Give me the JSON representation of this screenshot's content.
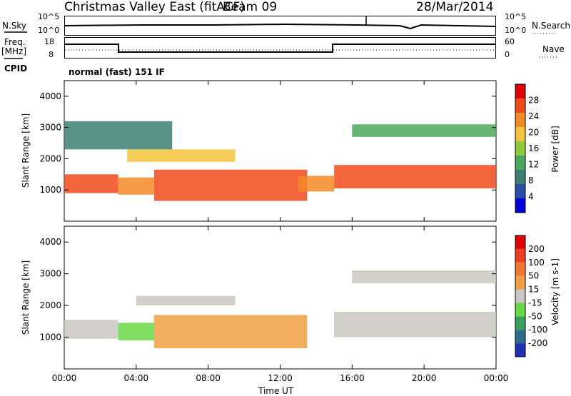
{
  "header": {
    "station": "Christmas Valley East (fitACF)",
    "beam": "Beam 09",
    "date": "28/Mar/2014"
  },
  "top_panels": {
    "nsky_label": "N.Sky",
    "nsky_ticks": [
      "10^5",
      "10^0"
    ],
    "nsearch_label": "N.Search",
    "nsearch_ticks": [
      "10^5",
      "10^0"
    ],
    "freq_label_1": "Freq.",
    "freq_label_2": "[MHz]",
    "freq_ticks": [
      "18",
      "8"
    ],
    "nave_label": "Nave",
    "nave_ticks": [
      "60",
      "0"
    ],
    "cpid_label": "CPID",
    "cpid_value": "normal (fast) 151 IF"
  },
  "colors": {
    "power_scale": [
      "#0000e0",
      "#2a4ea8",
      "#3c7f72",
      "#4ca85a",
      "#8fcc3c",
      "#f3c43c",
      "#f38a28",
      "#f04a1c",
      "#e00000"
    ],
    "velocity_scale": [
      "#1e2fb4",
      "#2a6e8a",
      "#3aa060",
      "#6ad844",
      "#c8c8c0",
      "#f0a040",
      "#f07830",
      "#f04020",
      "#e00000"
    ]
  },
  "chart_data": [
    {
      "type": "heatmap",
      "title": "",
      "quantity": "Power",
      "ylabel": "Slant Range [km]",
      "ylim": [
        0,
        4500
      ],
      "yticks": [
        1000,
        2000,
        3000,
        4000
      ],
      "xlim": [
        "00:00",
        "24:00"
      ],
      "colorbar_label": "Power [dB]",
      "colorbar_ticks": [
        "4",
        "8",
        "12",
        "16",
        "20",
        "24",
        "28"
      ],
      "colorbar_range": [
        0,
        32
      ],
      "regions": [
        {
          "t_start": 0.0,
          "t_end": 3.0,
          "r_low": 900,
          "r_high": 1500,
          "value": 26
        },
        {
          "t_start": 3.0,
          "t_end": 5.0,
          "r_low": 850,
          "r_high": 1400,
          "value": 24
        },
        {
          "t_start": 5.0,
          "t_end": 13.5,
          "r_low": 650,
          "r_high": 1650,
          "value": 28
        },
        {
          "t_start": 13.0,
          "t_end": 15.0,
          "r_low": 950,
          "r_high": 1450,
          "value": 22
        },
        {
          "t_start": 15.0,
          "t_end": 24.0,
          "r_low": 1050,
          "r_high": 1800,
          "value": 27
        },
        {
          "t_start": 3.5,
          "t_end": 9.5,
          "r_low": 1900,
          "r_high": 2300,
          "value": 18
        },
        {
          "t_start": 0.0,
          "t_end": 6.0,
          "r_low": 2300,
          "r_high": 3200,
          "value": 10
        },
        {
          "t_start": 16.0,
          "t_end": 24.0,
          "r_low": 2700,
          "r_high": 3100,
          "value": 12
        }
      ]
    },
    {
      "type": "heatmap",
      "title": "",
      "quantity": "Velocity",
      "ylabel": "Slant Range [km]",
      "ylim": [
        0,
        4500
      ],
      "yticks": [
        1000,
        2000,
        3000,
        4000
      ],
      "xlim": [
        "00:00",
        "24:00"
      ],
      "xlabel": "Time UT",
      "xticks": [
        "00:00",
        "04:00",
        "08:00",
        "12:00",
        "16:00",
        "20:00",
        "00:00"
      ],
      "colorbar_label": "Velocity [m s-1]",
      "colorbar_ticks": [
        "-200",
        "-100",
        "-50",
        "-15",
        "15",
        "50",
        "100",
        "200"
      ],
      "colorbar_range": [
        -250,
        250
      ],
      "regions": [
        {
          "t_start": 0.0,
          "t_end": 3.0,
          "r_low": 950,
          "r_high": 1550,
          "value": 0
        },
        {
          "t_start": 3.0,
          "t_end": 5.0,
          "r_low": 900,
          "r_high": 1450,
          "value": -40
        },
        {
          "t_start": 5.0,
          "t_end": 13.5,
          "r_low": 650,
          "r_high": 1700,
          "value": 40
        },
        {
          "t_start": 15.0,
          "t_end": 24.0,
          "r_low": 1000,
          "r_high": 1800,
          "value": 0
        },
        {
          "t_start": 4.0,
          "t_end": 9.5,
          "r_low": 2000,
          "r_high": 2300,
          "value": 0
        },
        {
          "t_start": 16.0,
          "t_end": 24.0,
          "r_low": 2700,
          "r_high": 3100,
          "value": 0
        }
      ]
    }
  ]
}
